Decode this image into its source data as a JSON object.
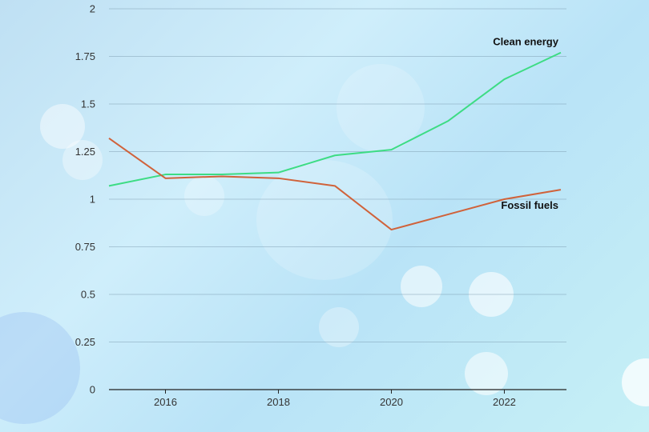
{
  "chart_data": {
    "type": "line",
    "title": "",
    "xlabel": "",
    "ylabel": "",
    "x": [
      2015,
      2016,
      2017,
      2018,
      2019,
      2020,
      2021,
      2022,
      2023
    ],
    "xlim": [
      2015,
      2023.1
    ],
    "ylim": [
      0,
      2
    ],
    "xticks": [
      "2016",
      "2018",
      "2020",
      "2022"
    ],
    "yticks": [
      "0",
      "0.25",
      "0.5",
      "0.75",
      "1",
      "1.25",
      "1.5",
      "1.75",
      "2"
    ],
    "grid": true,
    "series": [
      {
        "name": "Clean energy",
        "color": "#3ddc84",
        "values": [
          1.07,
          1.13,
          1.13,
          1.14,
          1.23,
          1.26,
          1.41,
          1.63,
          1.77
        ]
      },
      {
        "name": "Fossil fuels",
        "color": "#d0623a",
        "values": [
          1.32,
          1.11,
          1.12,
          1.11,
          1.07,
          0.84,
          0.92,
          1.0,
          1.05
        ]
      }
    ]
  }
}
